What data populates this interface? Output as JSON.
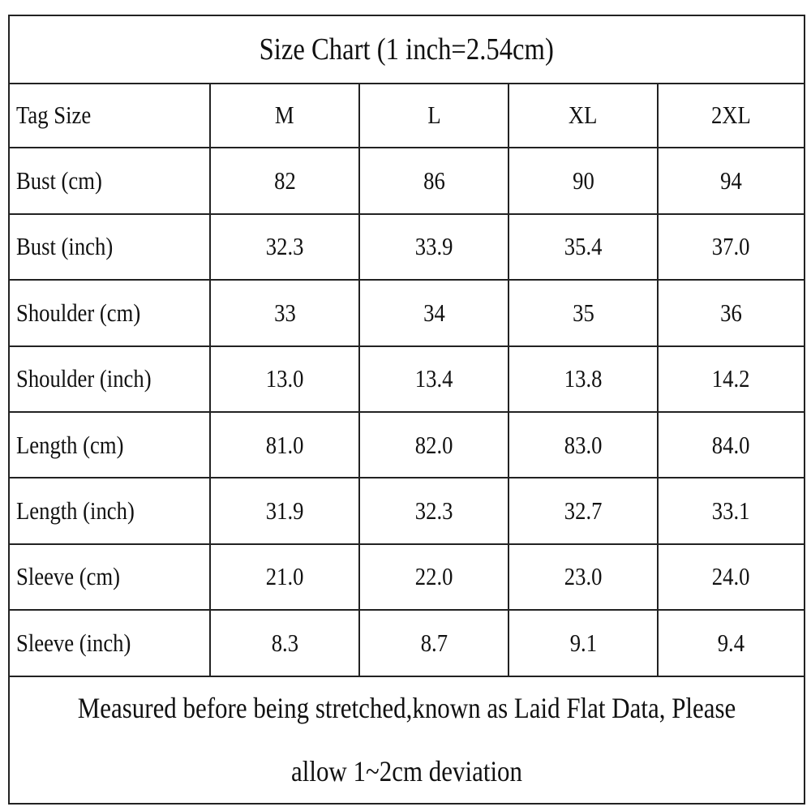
{
  "title": "Size Chart (1 inch=2.54cm)",
  "table": {
    "header": [
      "Tag Size",
      "M",
      "L",
      "XL",
      "2XL"
    ],
    "rows": [
      [
        "Bust (cm)",
        "82",
        "86",
        "90",
        "94"
      ],
      [
        "Bust (inch)",
        "32.3",
        "33.9",
        "35.4",
        "37.0"
      ],
      [
        "Shoulder (cm)",
        "33",
        "34",
        "35",
        "36"
      ],
      [
        "Shoulder (inch)",
        "13.0",
        "13.4",
        "13.8",
        "14.2"
      ],
      [
        "Length (cm)",
        "81.0",
        "82.0",
        "83.0",
        "84.0"
      ],
      [
        "Length (inch)",
        "31.9",
        "32.3",
        "32.7",
        "33.1"
      ],
      [
        "Sleeve (cm)",
        "21.0",
        "22.0",
        "23.0",
        "24.0"
      ],
      [
        "Sleeve (inch)",
        "8.3",
        "8.7",
        "9.1",
        "9.4"
      ]
    ]
  },
  "note": "Measured before being stretched,known as Laid Flat Data, Please allow 1~2cm deviation"
}
